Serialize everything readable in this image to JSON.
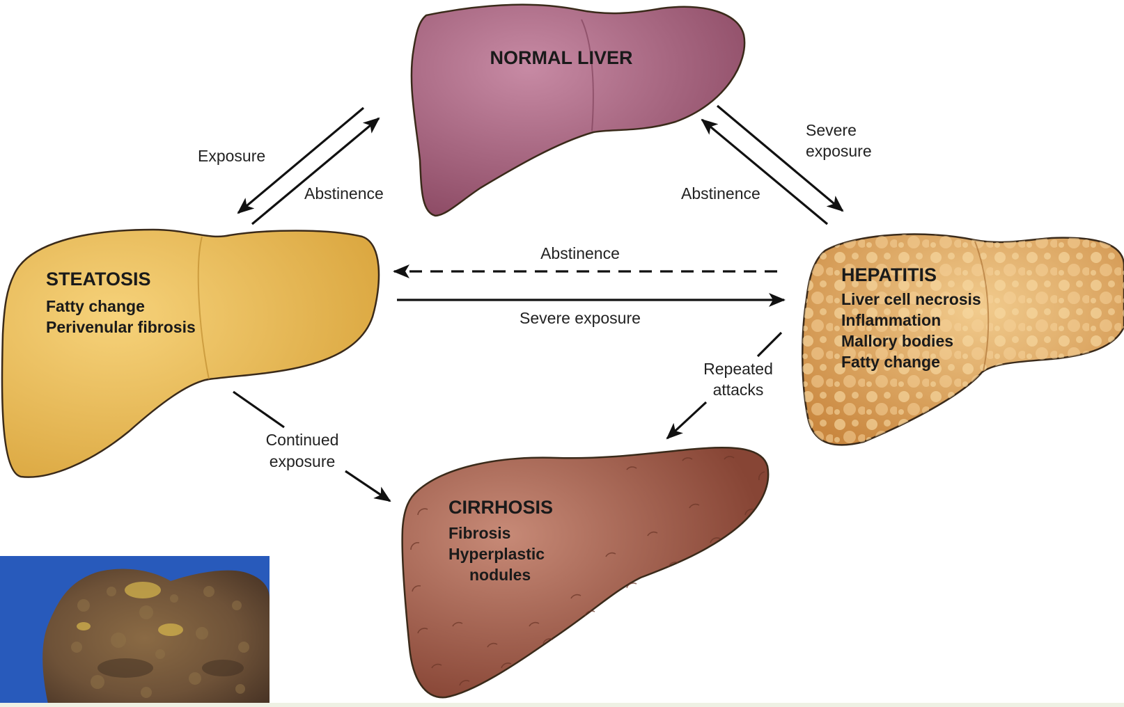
{
  "stages": {
    "normal": {
      "title": "NORMAL LIVER"
    },
    "steatosis": {
      "title": "STEATOSIS",
      "details": [
        "Fatty change",
        "Perivenular fibrosis"
      ]
    },
    "hepatitis": {
      "title": "HEPATITIS",
      "details": [
        "Liver cell necrosis",
        "Inflammation",
        "Mallory bodies",
        "Fatty change"
      ]
    },
    "cirrhosis": {
      "title": "CIRRHOSIS",
      "details": [
        "Fibrosis",
        "Hyperplastic",
        "nodules"
      ]
    }
  },
  "transitions": {
    "normal_to_steatosis": "Exposure",
    "steatosis_to_normal": "Abstinence",
    "normal_to_hepatitis": [
      "Severe",
      "exposure"
    ],
    "hepatitis_to_normal": "Abstinence",
    "hepatitis_to_steatosis": "Abstinence",
    "steatosis_to_hepatitis": "Severe exposure",
    "hepatitis_to_cirrhosis": [
      "Repeated",
      "attacks"
    ],
    "steatosis_to_cirrhosis": [
      "Continued",
      "exposure"
    ]
  },
  "colors": {
    "normal": "#a8607c",
    "steatosis": "#e8b850",
    "hepatitis": "#dca460",
    "cirrhosis": "#96503f",
    "photo_background": "#2c5fc2",
    "photo_tissue": "#6e5238"
  }
}
